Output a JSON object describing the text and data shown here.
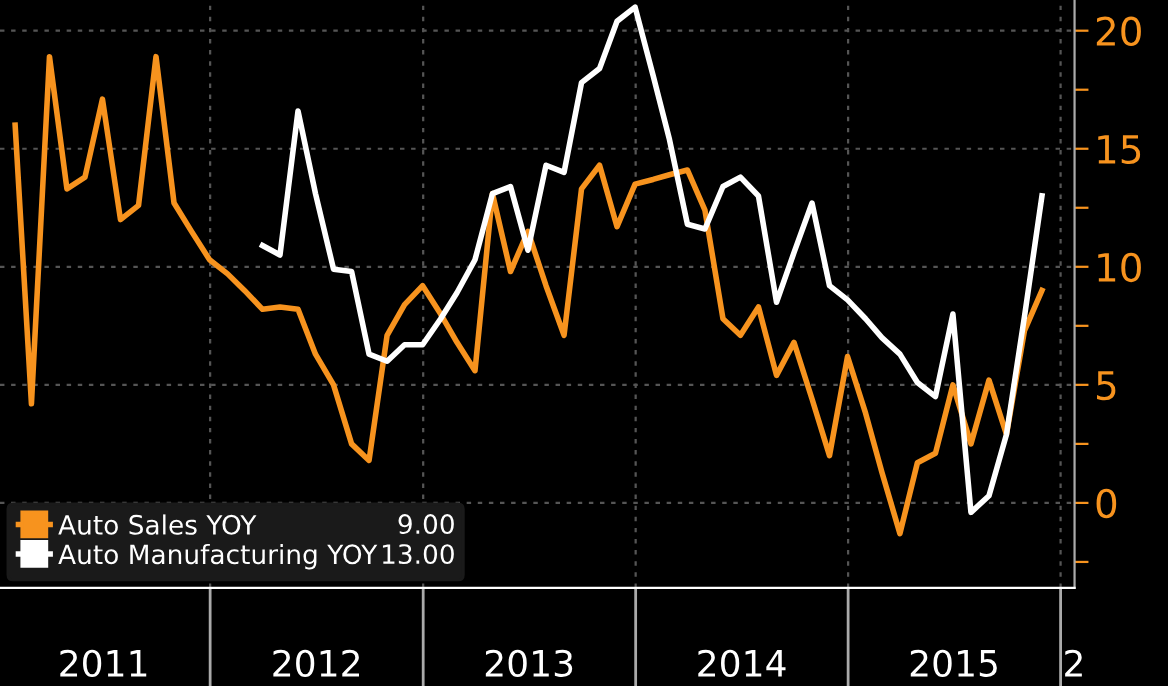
{
  "chart_data": {
    "type": "line",
    "x": [
      "2011-01-31",
      "2011-02-28",
      "2011-03-31",
      "2011-04-30",
      "2011-05-31",
      "2011-06-30",
      "2011-07-31",
      "2011-08-31",
      "2011-09-30",
      "2011-10-31",
      "2011-11-30",
      "2011-12-31",
      "2012-01-31",
      "2012-02-29",
      "2012-03-31",
      "2012-04-30",
      "2012-05-31",
      "2012-06-30",
      "2012-07-31",
      "2012-08-31",
      "2012-09-30",
      "2012-10-31",
      "2012-11-30",
      "2012-12-31",
      "2013-01-31",
      "2013-02-28",
      "2013-03-31",
      "2013-04-30",
      "2013-05-31",
      "2013-06-30",
      "2013-07-31",
      "2013-08-31",
      "2013-09-30",
      "2013-10-31",
      "2013-11-30",
      "2013-12-31",
      "2014-01-31",
      "2014-02-28",
      "2014-03-31",
      "2014-04-30",
      "2014-05-31",
      "2014-06-30",
      "2014-07-31",
      "2014-08-31",
      "2014-09-30",
      "2014-10-31",
      "2014-11-30",
      "2014-12-31",
      "2015-01-31",
      "2015-02-28",
      "2015-03-31",
      "2015-04-30",
      "2015-05-31",
      "2015-06-30",
      "2015-07-31",
      "2015-08-31",
      "2015-09-30",
      "2015-10-31",
      "2015-11-30"
    ],
    "series": [
      {
        "name": "Auto Sales YOY",
        "color": "#f7931e",
        "values": [
          16.0,
          4.2,
          18.9,
          13.3,
          13.8,
          17.1,
          12.0,
          12.6,
          18.9,
          12.7,
          11.5,
          10.3,
          9.7,
          9.0,
          8.2,
          8.3,
          8.2,
          6.3,
          5.0,
          2.5,
          1.8,
          7.1,
          8.4,
          9.2,
          8.0,
          6.8,
          5.6,
          13.1,
          9.8,
          11.5,
          9.2,
          7.1,
          13.3,
          14.3,
          11.7,
          13.5,
          13.7,
          13.9,
          14.1,
          12.4,
          7.8,
          7.1,
          8.3,
          5.4,
          6.8,
          4.4,
          2.0,
          6.2,
          3.8,
          1.3,
          -1.3,
          1.7,
          2.1,
          5.0,
          2.5,
          5.2,
          2.9,
          7.3,
          9.0
        ]
      },
      {
        "name": "Auto Manufacturing YOY",
        "color": "#ffffff",
        "values": [
          null,
          null,
          null,
          null,
          null,
          null,
          null,
          null,
          null,
          null,
          null,
          null,
          null,
          null,
          10.9,
          10.5,
          16.6,
          13.1,
          9.9,
          9.8,
          6.3,
          6.0,
          6.7,
          6.7,
          7.8,
          8.9,
          10.3,
          13.1,
          13.4,
          10.7,
          14.3,
          14.0,
          17.8,
          18.4,
          20.4,
          21.0,
          18.1,
          15.4,
          11.8,
          11.6,
          13.4,
          13.8,
          13.0,
          8.5,
          10.6,
          12.7,
          9.2,
          8.6,
          7.8,
          7.0,
          6.3,
          5.1,
          4.5,
          8.0,
          -0.4,
          0.3,
          2.9,
          7.9,
          13.0
        ]
      }
    ],
    "annotations": [
      "9.00",
      "13.00"
    ],
    "xlim": [
      "2011-01-05",
      "2016-01-25"
    ],
    "xticks": [
      {
        "value": "2012-01-01",
        "label": null
      },
      {
        "value": "2013-01-01",
        "label": null
      },
      {
        "value": "2014-01-01",
        "label": null
      },
      {
        "value": "2015-01-01",
        "label": null
      },
      {
        "value": "2016-01-01",
        "label": null
      },
      {
        "value": "2011-07-02",
        "label": "2011"
      },
      {
        "value": "2012-07-02",
        "label": "2012"
      },
      {
        "value": "2013-07-02",
        "label": "2013"
      },
      {
        "value": "2014-07-02",
        "label": "2014"
      },
      {
        "value": "2015-07-02",
        "label": "2015"
      },
      {
        "value": "2016-01-24",
        "label": "2"
      }
    ],
    "ylim": [
      -3.6,
      21.3
    ],
    "yticks": [
      {
        "value": -2.5,
        "label": null
      },
      0,
      {
        "value": 2.5,
        "label": null
      },
      5,
      {
        "value": 7.5,
        "label": null
      },
      10,
      {
        "value": 12.5,
        "label": null
      },
      15,
      {
        "value": 17.5,
        "label": null
      },
      20
    ],
    "grid": true,
    "legend": "bottom left",
    "marker": "none",
    "line_style": "solid"
  }
}
